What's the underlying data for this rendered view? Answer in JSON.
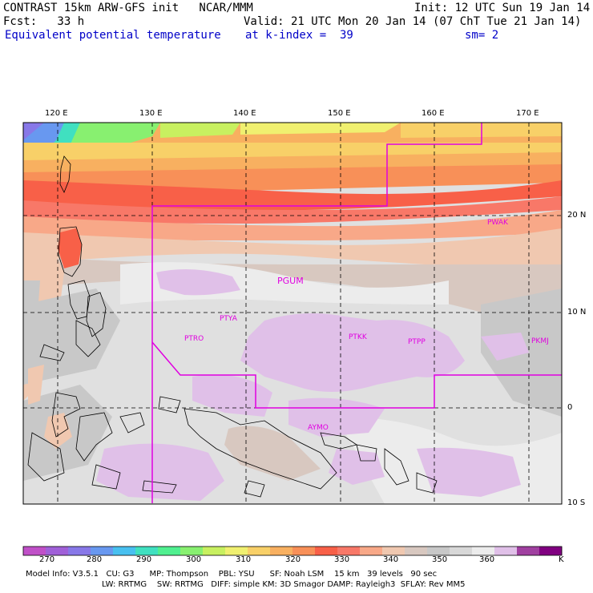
{
  "header": {
    "line1_left": "CONTRAST 15km ARW-GFS init   NCAR/MMM",
    "line1_right": "Init: 12 UTC Sun 19 Jan 14",
    "line2_left": "Fcst:   33 h",
    "line2_right": "Valid: 21 UTC Mon 20 Jan 14 (07 ChT Tue 21 Jan 14)",
    "line3_left": "Equivalent potential temperature",
    "line3_mid": "at k-index =  39",
    "line3_right": "sm= 2"
  },
  "axes": {
    "lon_labels": [
      "120 E",
      "130 E",
      "140 E",
      "150 E",
      "160 E",
      "170 E"
    ],
    "lat_labels": [
      "20 N",
      "10 N",
      "0",
      "10 S"
    ]
  },
  "stations": [
    "PWAK",
    "PGUM",
    "PTYA",
    "PTRO",
    "PTKK",
    "PTPP",
    "PKMJ",
    "AYMO"
  ],
  "colorbar": {
    "colors": [
      "#c050c8",
      "#a060d8",
      "#8878e8",
      "#6898f0",
      "#48c0f0",
      "#40e0c0",
      "#50f090",
      "#88f070",
      "#c8f060",
      "#f0f070",
      "#f8d068",
      "#f8b060",
      "#f89058",
      "#f86048",
      "#f87868",
      "#f8a888",
      "#f0c8b0",
      "#d8c8c0",
      "#c8c8c8",
      "#d8d8d8",
      "#ececec",
      "#e0c0e8",
      "#a040a0",
      "#800080"
    ],
    "labels": [
      "270",
      "280",
      "290",
      "300",
      "310",
      "320",
      "330",
      "340",
      "350",
      "360"
    ],
    "unit": "K"
  },
  "footer": {
    "line1": "Model Info: V3.5.1   CU: G3      MP: Thompson    PBL: YSU      SF: Noah LSM    15 km   39 levels   90 sec",
    "line2": "LW: RRTMG    SW: RRTMG   DIFF: simple KM: 3D Smagor DAMP: Rayleigh3  SFLAY: Rev MM5"
  }
}
